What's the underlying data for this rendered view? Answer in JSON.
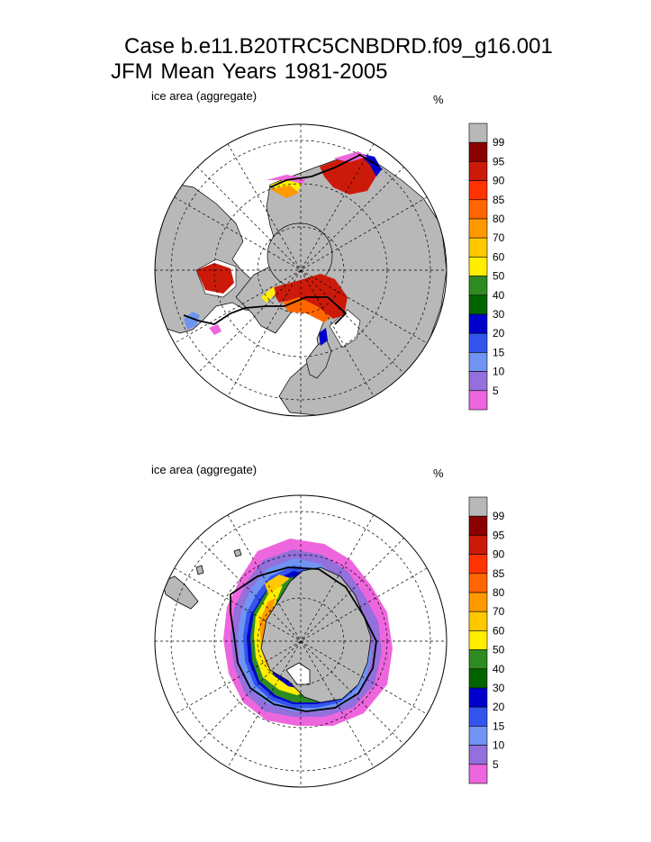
{
  "title": {
    "line1": "Case b.e11.B20TRC5CNBDRD.f09_g16.001",
    "line2": "JFM Mean    Years 1981-2005"
  },
  "panels": [
    {
      "id": "north",
      "label": "ice area  (aggregate)",
      "unit": "%"
    },
    {
      "id": "south",
      "label": "ice area  (aggregate)",
      "unit": "%"
    }
  ],
  "colorbar": {
    "labels": [
      "99",
      "95",
      "90",
      "85",
      "80",
      "70",
      "60",
      "50",
      "40",
      "30",
      "20",
      "15",
      "10",
      "5"
    ],
    "colors": [
      "#b8b8b8",
      "#8b0000",
      "#cc1a0a",
      "#ff3300",
      "#ff6600",
      "#ff9900",
      "#ffc800",
      "#ffee00",
      "#2e8b22",
      "#006400",
      "#0000cc",
      "#3355ee",
      "#6f94f2",
      "#9370db",
      "#ee66dd"
    ]
  },
  "map_colors": {
    "land": "#b8b8b8",
    "ocean": "#ffffff"
  }
}
